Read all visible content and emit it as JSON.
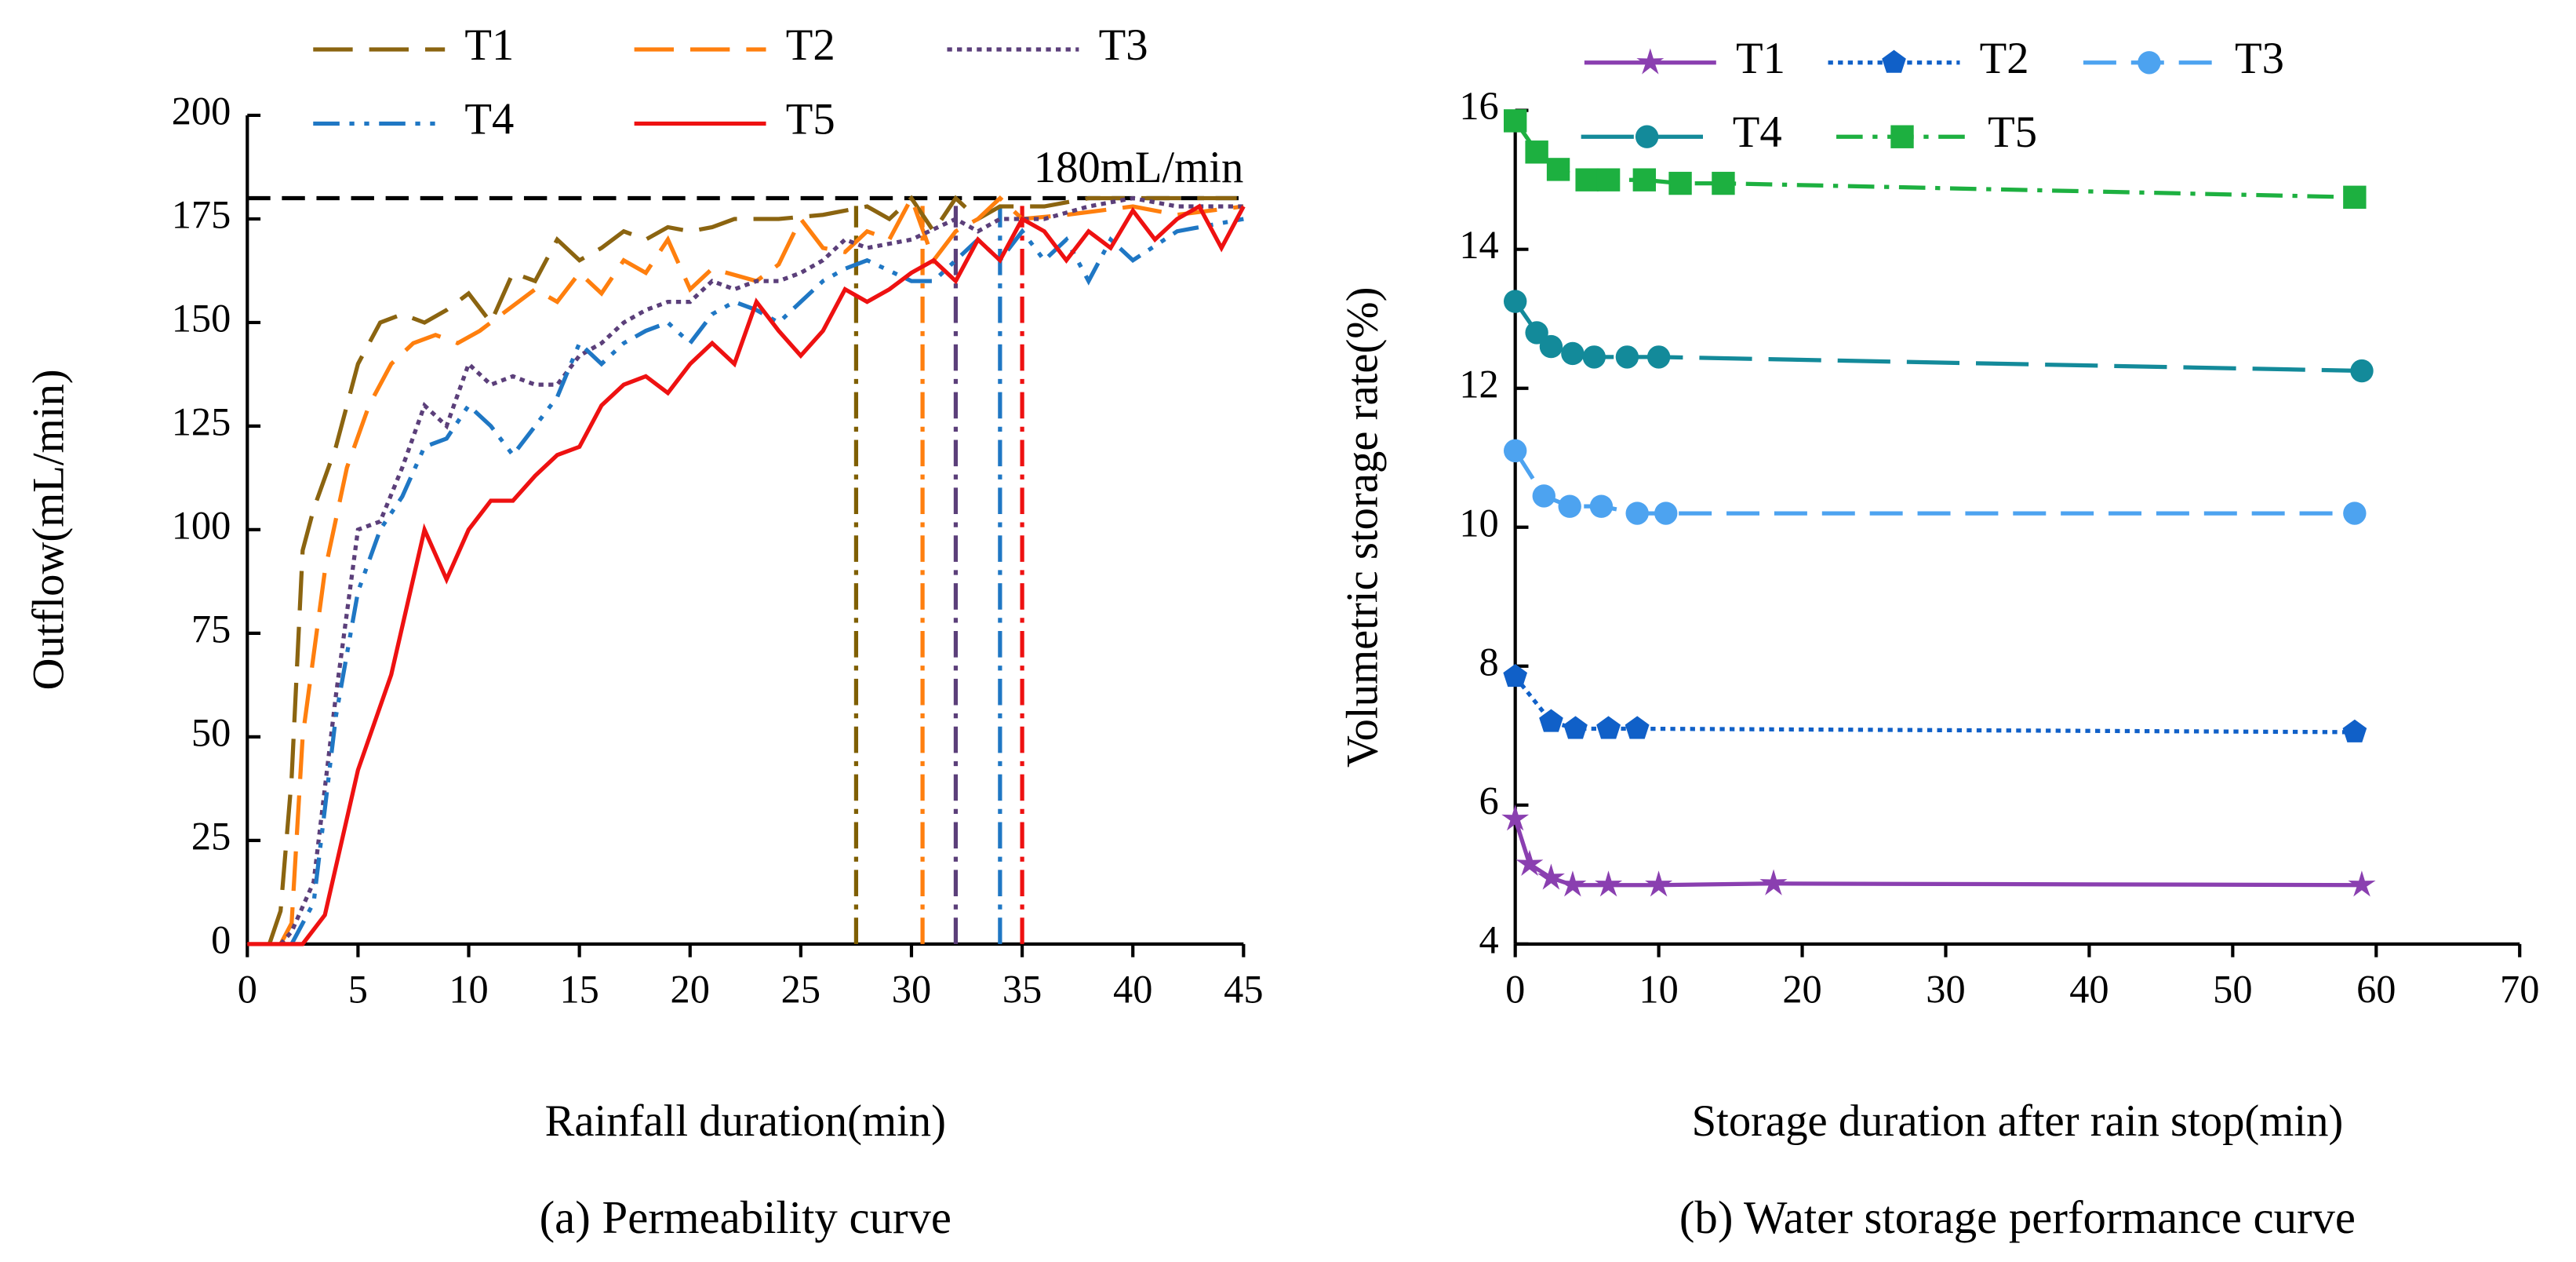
{
  "chart_data": [
    {
      "type": "line",
      "title": "(a) Permeability curve",
      "xlabel": "Rainfall duration(min)",
      "ylabel": "Outflow(mL/min)",
      "xlim": [
        0,
        45
      ],
      "xticks": [
        0,
        5,
        10,
        15,
        20,
        25,
        30,
        35,
        40,
        45
      ],
      "ylim": [
        0,
        200
      ],
      "yticks": [
        0,
        25,
        50,
        75,
        100,
        125,
        150,
        175,
        200
      ],
      "reference_line": {
        "value": 180,
        "label": "180mL/min",
        "color": "#000000"
      },
      "vlines": [
        {
          "x": 27.5,
          "color": "#7f5f00"
        },
        {
          "x": 30.5,
          "color": "#ff7f0e"
        },
        {
          "x": 32,
          "color": "#5b3f7a"
        },
        {
          "x": 34,
          "color": "#1f77c4"
        },
        {
          "x": 35,
          "color": "#ee1111"
        }
      ],
      "series": [
        {
          "name": "T1",
          "color": "#8b6410",
          "dash": "24,10",
          "x": [
            1,
            1.5,
            2,
            2.5,
            3,
            4,
            5,
            6,
            7,
            8,
            9,
            10,
            11,
            12,
            13,
            14,
            15,
            16,
            17,
            18,
            19,
            20,
            21,
            22,
            24,
            26,
            28,
            29,
            30,
            31,
            32,
            33,
            34,
            36,
            38,
            40,
            42,
            45
          ],
          "values": [
            0,
            8,
            40,
            95,
            105,
            120,
            140,
            150,
            152,
            150,
            153,
            157,
            150,
            162,
            160,
            170,
            165,
            168,
            172,
            170,
            173,
            172,
            173,
            175,
            175,
            176,
            178,
            175,
            180,
            172,
            180,
            175,
            178,
            178,
            180,
            180,
            180,
            180
          ]
        },
        {
          "name": "T2",
          "color": "#ff7f0e",
          "dash": "24,10",
          "x": [
            1.5,
            2,
            2.5,
            3.5,
            4.5,
            5.5,
            6.5,
            7.5,
            8.5,
            9.5,
            10.5,
            11.5,
            13,
            14,
            15,
            16,
            17,
            18,
            19,
            20,
            21,
            23,
            24,
            25,
            26,
            27,
            28,
            29,
            30,
            31,
            32,
            33,
            34,
            35,
            37,
            40,
            42,
            45
          ],
          "values": [
            0,
            5,
            50,
            90,
            115,
            130,
            140,
            145,
            147,
            145,
            148,
            152,
            158,
            155,
            162,
            157,
            165,
            162,
            170,
            158,
            163,
            160,
            164,
            175,
            168,
            167,
            172,
            170,
            180,
            165,
            172,
            175,
            180,
            175,
            176,
            178,
            176,
            178
          ]
        },
        {
          "name": "T3",
          "color": "#5b3f7a",
          "dash": "3,3",
          "x": [
            1.5,
            2,
            3,
            4,
            5,
            6,
            7,
            8,
            9,
            10,
            11,
            12,
            13,
            14,
            15,
            16,
            17,
            18,
            19,
            20,
            21,
            22,
            23,
            24,
            25,
            26,
            27,
            28,
            30,
            32,
            33,
            34,
            36,
            38,
            40,
            42,
            45
          ],
          "values": [
            0,
            3,
            15,
            60,
            100,
            102,
            115,
            130,
            125,
            140,
            135,
            137,
            135,
            135,
            142,
            145,
            150,
            153,
            155,
            155,
            160,
            158,
            160,
            160,
            162,
            165,
            170,
            168,
            170,
            175,
            172,
            175,
            175,
            178,
            180,
            178,
            178
          ]
        },
        {
          "name": "T4",
          "color": "#1f77c4",
          "dash": "16,6,3,6,3,6",
          "x": [
            2,
            3,
            4,
            5,
            6,
            7,
            8,
            9,
            10,
            11,
            12,
            13,
            14,
            15,
            16,
            17,
            18,
            19,
            20,
            21,
            22,
            23,
            24,
            25,
            26,
            27,
            28,
            30,
            31,
            32,
            33,
            34,
            35,
            36,
            37,
            38,
            39,
            40,
            42,
            45
          ],
          "values": [
            0,
            10,
            55,
            85,
            100,
            108,
            120,
            122,
            130,
            125,
            118,
            125,
            132,
            145,
            140,
            145,
            148,
            150,
            145,
            152,
            155,
            153,
            150,
            155,
            160,
            163,
            165,
            160,
            160,
            165,
            170,
            165,
            172,
            165,
            170,
            160,
            170,
            165,
            172,
            175
          ]
        },
        {
          "name": "T5",
          "color": "#ee1111",
          "dash": "none",
          "x": [
            0,
            2.5,
            3.5,
            5,
            6.5,
            8,
            9,
            10,
            11,
            12,
            13,
            14,
            15,
            16,
            17,
            18,
            19,
            20,
            21,
            22,
            23,
            24,
            25,
            26,
            27,
            28,
            29,
            30,
            31,
            32,
            33,
            34,
            35,
            36,
            37,
            38,
            39,
            40,
            41,
            42,
            43,
            44,
            45
          ],
          "values": [
            0,
            0,
            7,
            42,
            65,
            100,
            88,
            100,
            107,
            107,
            113,
            118,
            120,
            130,
            135,
            137,
            133,
            140,
            145,
            140,
            155,
            148,
            142,
            148,
            158,
            155,
            158,
            162,
            165,
            160,
            170,
            165,
            175,
            172,
            165,
            172,
            168,
            177,
            170,
            175,
            178,
            168,
            178
          ]
        }
      ]
    },
    {
      "type": "line",
      "title": "(b) Water storage performance curve",
      "xlabel": "Storage duration after rain stop(min)",
      "ylabel": "Volumetric storage rate(%)",
      "xlim": [
        0,
        70
      ],
      "xticks": [
        0,
        10,
        20,
        30,
        40,
        50,
        60,
        70
      ],
      "ylim": [
        4,
        16
      ],
      "yticks": [
        4,
        6,
        8,
        10,
        12,
        14,
        16
      ],
      "series": [
        {
          "name": "T1",
          "color": "#8a3fb0",
          "dash": "none",
          "marker": "star",
          "x": [
            0,
            1,
            2.5,
            4,
            6.5,
            10,
            18,
            59
          ],
          "values": [
            5.8,
            5.15,
            4.95,
            4.85,
            4.85,
            4.85,
            4.87,
            4.85
          ]
        },
        {
          "name": "T2",
          "color": "#1060c8",
          "dash": "3,3",
          "marker": "pentagon",
          "x": [
            0,
            2.5,
            4.2,
            6.5,
            8.5,
            58.5
          ],
          "values": [
            7.85,
            7.2,
            7.1,
            7.1,
            7.1,
            7.05
          ]
        },
        {
          "name": "T3",
          "color": "#4da3f0",
          "dash": "20,9",
          "marker": "circle",
          "x": [
            0,
            2,
            3.8,
            6,
            8.5,
            10.5,
            58.5
          ],
          "values": [
            11.1,
            10.45,
            10.3,
            10.3,
            10.2,
            10.2,
            10.2
          ]
        },
        {
          "name": "T4",
          "color": "#138a9a",
          "dash": "32,10",
          "marker": "circle",
          "x": [
            0,
            1.5,
            2.5,
            4,
            5.5,
            7.8,
            10,
            59
          ],
          "values": [
            13.25,
            12.8,
            12.6,
            12.5,
            12.45,
            12.45,
            12.45,
            12.25
          ]
        },
        {
          "name": "T5",
          "color": "#1db040",
          "dash": "16,6,3,6",
          "marker": "square",
          "x": [
            0,
            1.5,
            3,
            5,
            6.5,
            9,
            11.5,
            14.5,
            58.5
          ],
          "values": [
            15.85,
            15.4,
            15.15,
            15.0,
            15.0,
            15.0,
            14.95,
            14.95,
            14.75
          ]
        }
      ]
    }
  ]
}
